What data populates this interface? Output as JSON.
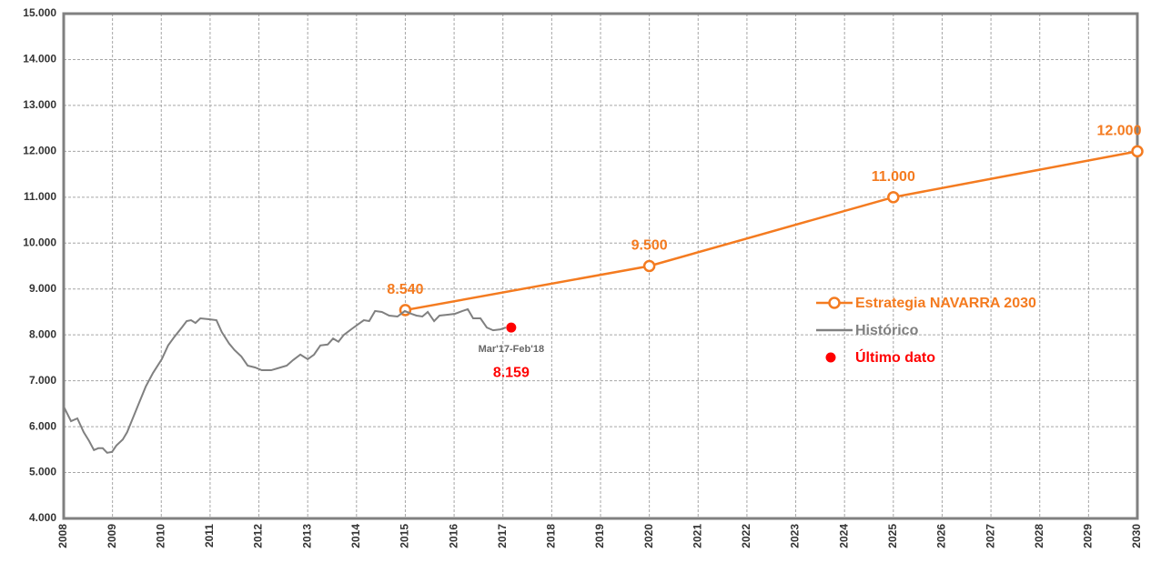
{
  "chart_data": {
    "type": "line",
    "xlim": [
      2008,
      2030
    ],
    "xticks": [
      2008,
      2009,
      2010,
      2011,
      2012,
      2013,
      2014,
      2015,
      2016,
      2017,
      2018,
      2019,
      2020,
      2021,
      2022,
      2023,
      2024,
      2025,
      2026,
      2027,
      2028,
      2029,
      2030
    ],
    "ylim": [
      4000,
      15000
    ],
    "yticks": [
      {
        "value": 4000,
        "label": "4.000"
      },
      {
        "value": 5000,
        "label": "5.000"
      },
      {
        "value": 6000,
        "label": "6.000"
      },
      {
        "value": 7000,
        "label": "7.000"
      },
      {
        "value": 8000,
        "label": "8.000"
      },
      {
        "value": 9000,
        "label": "9.000"
      },
      {
        "value": 10000,
        "label": "10.000"
      },
      {
        "value": 11000,
        "label": "11.000"
      },
      {
        "value": 12000,
        "label": "12.000"
      },
      {
        "value": 13000,
        "label": "13.000"
      },
      {
        "value": 14000,
        "label": "14.000"
      },
      {
        "value": 15000,
        "label": "15.000"
      }
    ],
    "grid": true,
    "legend": "right",
    "series": [
      {
        "name": "Estrategia NAVARRA 2030",
        "color": "#f47b20",
        "marker": "circle",
        "x": [
          2015,
          2020,
          2025,
          2030
        ],
        "values": [
          8540,
          9500,
          11000,
          12000
        ],
        "value_labels": [
          "8.540",
          "9.500",
          "11.000",
          "12.000"
        ]
      },
      {
        "name": "Histórico",
        "color": "#808080",
        "x": [
          2008.0,
          2008.15,
          2008.28,
          2008.41,
          2008.52,
          2008.62,
          2008.71,
          2008.8,
          2008.89,
          2008.99,
          2009.08,
          2009.21,
          2009.3,
          2009.4,
          2009.53,
          2009.68,
          2009.83,
          2010.01,
          2010.14,
          2010.27,
          2010.42,
          2010.52,
          2010.61,
          2010.7,
          2010.8,
          2010.98,
          2011.13,
          2011.24,
          2011.39,
          2011.5,
          2011.64,
          2011.77,
          2011.92,
          2012.06,
          2012.25,
          2012.38,
          2012.57,
          2012.7,
          2012.85,
          2013.0,
          2013.13,
          2013.26,
          2013.41,
          2013.52,
          2013.63,
          2013.74,
          2013.89,
          2014.02,
          2014.15,
          2014.26,
          2014.38,
          2014.52,
          2014.67,
          2014.84,
          2014.99,
          2015.12,
          2015.23,
          2015.35,
          2015.46,
          2015.59,
          2015.7,
          2015.87,
          2016.02,
          2016.17,
          2016.28,
          2016.39,
          2016.54,
          2016.67,
          2016.8,
          2016.95,
          2017.06
        ],
        "values": [
          6440,
          6120,
          6180,
          5880,
          5690,
          5490,
          5530,
          5530,
          5430,
          5450,
          5590,
          5720,
          5880,
          6140,
          6480,
          6870,
          7170,
          7470,
          7770,
          7960,
          8160,
          8300,
          8320,
          8260,
          8360,
          8340,
          8320,
          8060,
          7810,
          7670,
          7530,
          7330,
          7290,
          7230,
          7230,
          7270,
          7330,
          7450,
          7570,
          7470,
          7570,
          7770,
          7790,
          7920,
          7850,
          8000,
          8120,
          8220,
          8320,
          8300,
          8520,
          8500,
          8420,
          8400,
          8520,
          8460,
          8420,
          8400,
          8500,
          8300,
          8420,
          8440,
          8460,
          8520,
          8560,
          8360,
          8360,
          8160,
          8100,
          8120,
          8160
        ]
      },
      {
        "name": "Último dato",
        "color": "#ff0000",
        "marker": "dot",
        "x": [
          2017.17
        ],
        "values": [
          8159
        ],
        "value_labels": [
          "8.159"
        ]
      }
    ],
    "annotations": [
      {
        "text": "Mar'17-Feb'18",
        "x": 2017.17,
        "y": 8159
      }
    ]
  }
}
